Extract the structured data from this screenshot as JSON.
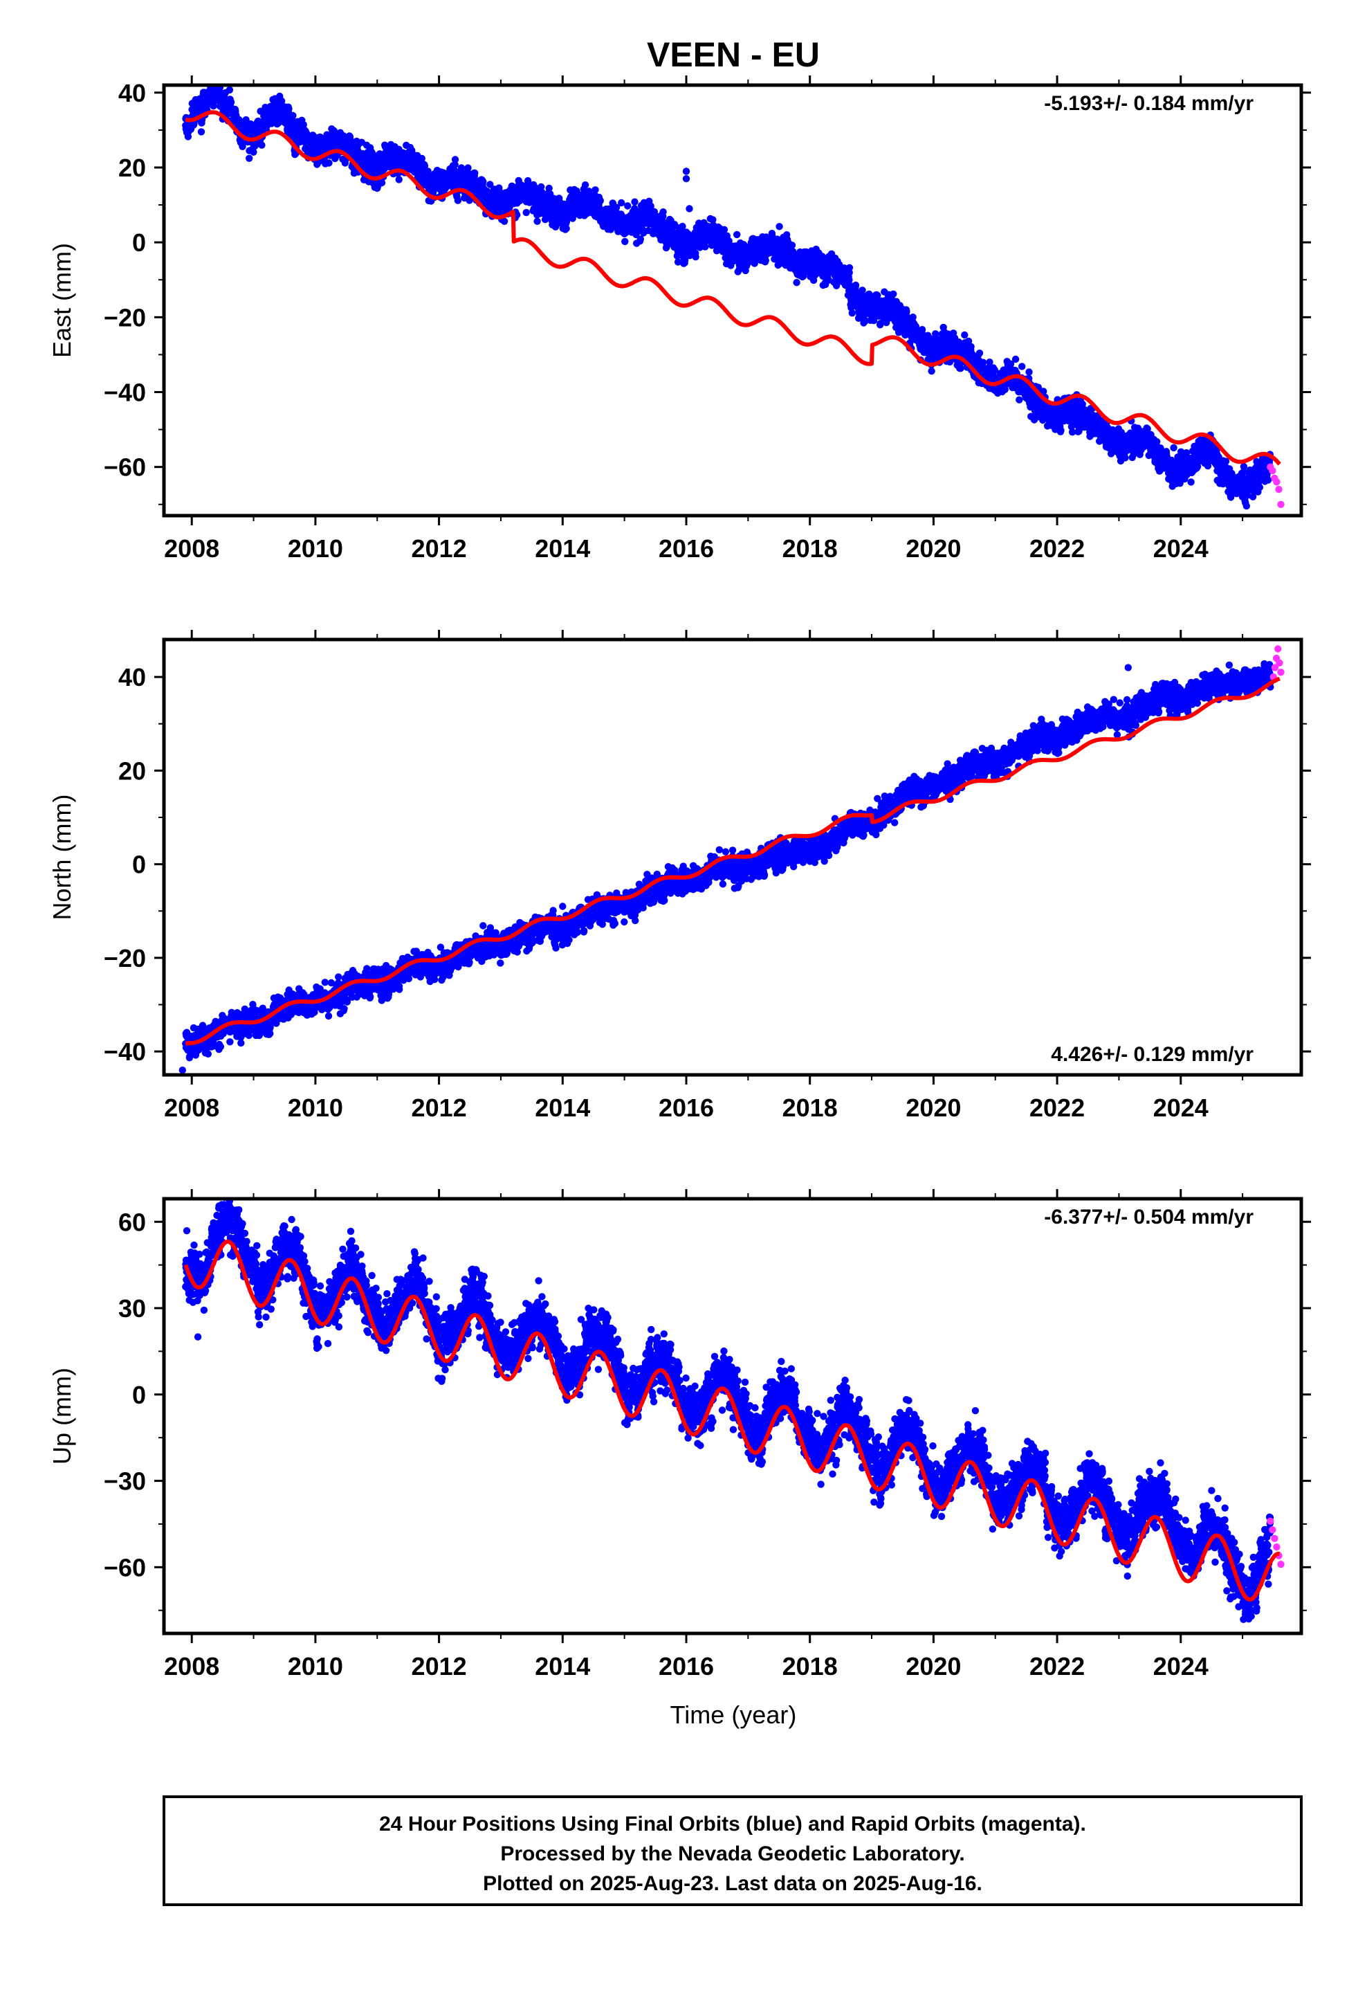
{
  "title": "VEEN - EU",
  "colors": {
    "final": "#0000ff",
    "rapid": "#ff33ff",
    "model": "#ff0000",
    "frame": "#000000"
  },
  "x_axis": {
    "label": "Time (year)",
    "range": [
      2007.55,
      2025.95
    ],
    "ticks": [
      2008,
      2010,
      2012,
      2014,
      2016,
      2018,
      2020,
      2022,
      2024
    ]
  },
  "chart_data": [
    {
      "type": "scatter",
      "name": "east",
      "ylabel": "East (mm)",
      "ylim": [
        -73,
        42
      ],
      "yticks": [
        40,
        20,
        0,
        -20,
        -40,
        -60
      ],
      "rate_label": "-5.193+/- 0.184 mm/yr",
      "rate_position": "top-right",
      "observed_trend": {
        "points": [
          [
            2007.9,
            34
          ],
          [
            2008.4,
            38
          ],
          [
            2008.9,
            30
          ],
          [
            2009.5,
            33
          ],
          [
            2010.0,
            26
          ],
          [
            2011.0,
            22
          ],
          [
            2012.0,
            17
          ],
          [
            2013.0,
            12
          ],
          [
            2014.0,
            10
          ],
          [
            2015.0,
            7
          ],
          [
            2016.0,
            1
          ],
          [
            2017.0,
            -2
          ],
          [
            2018.0,
            -5
          ],
          [
            2019.0,
            -16
          ],
          [
            2020.0,
            -27
          ],
          [
            2021.0,
            -35
          ],
          [
            2022.0,
            -45
          ],
          [
            2023.0,
            -52
          ],
          [
            2024.0,
            -60
          ],
          [
            2024.5,
            -58
          ],
          [
            2024.9,
            -64
          ],
          [
            2025.5,
            -62
          ]
        ],
        "scatter_mm": 2.5
      },
      "model": {
        "a": 35,
        "b": -5.193,
        "t0": 2007.9,
        "amp": 2.2,
        "phase_peak": 0.4,
        "breaks": [
          {
            "t": 2013.2,
            "offset": -8
          },
          {
            "t": 2019.0,
            "offset": 5
          }
        ]
      },
      "outliers": [
        [
          2016.0,
          19
        ],
        [
          2016.0,
          17
        ],
        [
          2016.05,
          9
        ]
      ],
      "rapid": {
        "t": [
          2025.45,
          2025.62
        ],
        "values": [
          -60,
          -61,
          -63,
          -64,
          -66,
          -70
        ]
      }
    },
    {
      "type": "scatter",
      "name": "north",
      "ylabel": "North (mm)",
      "ylim": [
        -45,
        48
      ],
      "yticks": [
        40,
        20,
        0,
        -20,
        -40
      ],
      "rate_label": "4.426+/- 0.129 mm/yr",
      "rate_position": "bottom-right",
      "observed_trend": {
        "points": [
          [
            2007.9,
            -38
          ],
          [
            2010.0,
            -29
          ],
          [
            2012.0,
            -21
          ],
          [
            2014.0,
            -13
          ],
          [
            2016.0,
            -3
          ],
          [
            2018.0,
            3
          ],
          [
            2019.2,
            11
          ],
          [
            2020.0,
            17
          ],
          [
            2022.0,
            28
          ],
          [
            2024.0,
            36
          ],
          [
            2025.6,
            41
          ]
        ],
        "scatter_mm": 1.8
      },
      "model": {
        "a": -38,
        "b": 4.426,
        "t0": 2007.9,
        "amp": 0.8,
        "phase_peak": 0.6,
        "breaks": [
          {
            "t": 2019.0,
            "offset": -1.5
          }
        ]
      },
      "outliers": [
        [
          2023.15,
          42
        ],
        [
          2014.0,
          -9
        ],
        [
          2007.85,
          -44
        ]
      ],
      "rapid": {
        "t": [
          2025.5,
          2025.62
        ],
        "values": [
          40,
          42,
          44,
          46,
          43,
          41
        ]
      }
    },
    {
      "type": "scatter",
      "name": "up",
      "ylabel": "Up (mm)",
      "ylim": [
        -83,
        68
      ],
      "yticks": [
        60,
        30,
        0,
        -30,
        -60
      ],
      "rate_label": "-6.377+/- 0.504 mm/yr",
      "rate_position": "top-right",
      "observed_trend": {
        "points": [
          [
            2007.9,
            45
          ],
          [
            2008.6,
            52
          ],
          [
            2010.0,
            38
          ],
          [
            2012.0,
            28
          ],
          [
            2014.0,
            16
          ],
          [
            2016.0,
            2
          ],
          [
            2018.0,
            -10
          ],
          [
            2020.0,
            -24
          ],
          [
            2022.0,
            -36
          ],
          [
            2024.0,
            -44
          ],
          [
            2025.0,
            -62
          ],
          [
            2025.6,
            -55
          ]
        ],
        "scatter_mm": 6
      },
      "model": {
        "a": 48,
        "b": -6.377,
        "t0": 2007.9,
        "amp": 9.5,
        "phase_peak": 0.6,
        "breaks": []
      },
      "outliers": [
        [
          2008.65,
          64
        ],
        [
          2008.1,
          20
        ],
        [
          2025.1,
          -78
        ]
      ],
      "rapid": {
        "t": [
          2025.45,
          2025.62
        ],
        "values": [
          -44,
          -47,
          -50,
          -53,
          -56,
          -59
        ]
      }
    }
  ],
  "footer": {
    "lines": [
      "24 Hour Positions Using Final Orbits (blue) and Rapid Orbits (magenta).",
      "Processed by the Nevada Geodetic Laboratory.",
      "Plotted on 2025-Aug-23. Last data on 2025-Aug-16."
    ]
  }
}
